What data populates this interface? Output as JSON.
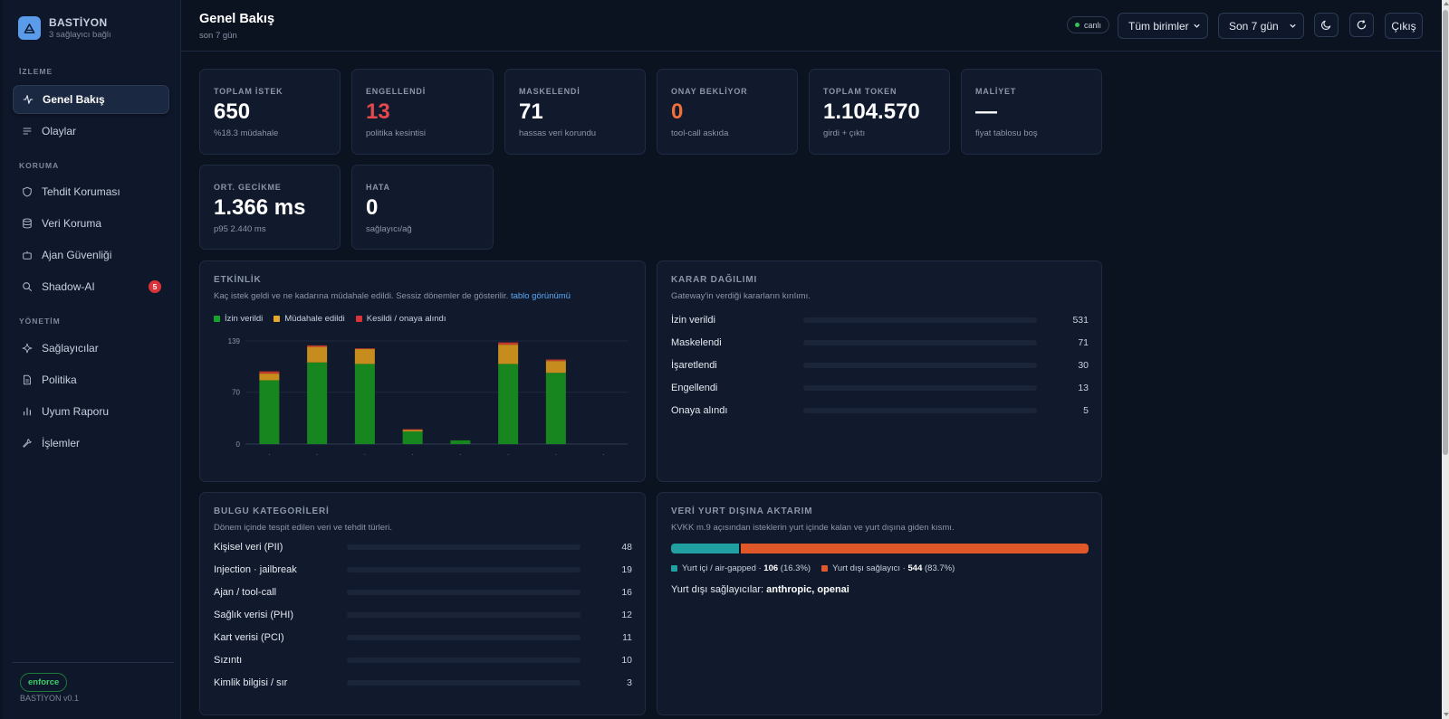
{
  "brand": {
    "name": "BASTİYON",
    "subtitle": "3 sağlayıcı bağlı"
  },
  "sidebar": {
    "sections": [
      "İZLEME",
      "KORUMA",
      "YÖNETİM"
    ],
    "items": [
      {
        "label": "Genel Bakış",
        "icon": "activity-icon",
        "active": true
      },
      {
        "label": "Olaylar",
        "icon": "list-icon"
      },
      {
        "label": "Tehdit Koruması",
        "icon": "shield-icon"
      },
      {
        "label": "Veri Koruma",
        "icon": "database-icon"
      },
      {
        "label": "Ajan Güvenliği",
        "icon": "bot-icon"
      },
      {
        "label": "Shadow-AI",
        "icon": "search-icon",
        "badge": "5"
      },
      {
        "label": "Sağlayıcılar",
        "icon": "sparkle-icon"
      },
      {
        "label": "Politika",
        "icon": "document-icon"
      },
      {
        "label": "Uyum Raporu",
        "icon": "bar-chart-icon"
      },
      {
        "label": "İşlemler",
        "icon": "wrench-icon"
      }
    ],
    "mode": "enforce",
    "version": "BASTİYON v0.1"
  },
  "header": {
    "title": "Genel Bakış",
    "subtitle": "son 7 gün",
    "live": "canlı",
    "unit_select": "Tüm birimler",
    "range_select": "Son 7 gün",
    "logout": "Çıkış"
  },
  "stats": [
    {
      "label": "TOPLAM İSTEK",
      "value": "650",
      "sub": "%18.3 müdahale"
    },
    {
      "label": "ENGELLENDİ",
      "value": "13",
      "sub": "politika kesintisi",
      "color": "#e5484d"
    },
    {
      "label": "MASKELENDİ",
      "value": "71",
      "sub": "hassas veri korundu"
    },
    {
      "label": "ONAY BEKLİYOR",
      "value": "0",
      "sub": "tool-call askıda",
      "color": "#f0703a"
    },
    {
      "label": "TOPLAM TOKEN",
      "value": "1.104.570",
      "sub": "girdi + çıktı"
    },
    {
      "label": "MALİYET",
      "value": "—",
      "sub": "fiyat tablosu boş"
    },
    {
      "label": "ORT. GECİKME",
      "value": "1.366 ms",
      "sub": "p95 2.440 ms"
    },
    {
      "label": "HATA",
      "value": "0",
      "sub": "sağlayıcı/ağ"
    }
  ],
  "activity": {
    "title": "ETKİNLİK",
    "subtitle": "Kaç istek geldi ve ne kadarına müdahale edildi. Sessiz dönemler de gösterilir.",
    "table_link": "tablo görünümü",
    "legend": [
      "İzin verildi",
      "Müdahale edildi",
      "Kesildi / onaya alındı"
    ]
  },
  "chart_data": {
    "type": "bar",
    "stacked": true,
    "categories": [
      "",
      "",
      "",
      "",
      "",
      "",
      "",
      ""
    ],
    "series": [
      {
        "name": "İzin verildi",
        "color": "#17861f",
        "values": [
          86,
          110,
          108,
          17,
          5,
          108,
          96,
          0
        ]
      },
      {
        "name": "Müdahale edildi",
        "color": "#c68c1d",
        "values": [
          9,
          21,
          20,
          2,
          0,
          26,
          16,
          0
        ]
      },
      {
        "name": "Kesildi / onaya alındı",
        "color": "#c0392b",
        "values": [
          3,
          2,
          1,
          1,
          0,
          3,
          2,
          0
        ]
      }
    ],
    "yticks": [
      "0",
      "70",
      "139"
    ],
    "ylim": [
      0,
      139
    ],
    "grid": true
  },
  "decisions": {
    "title": "KARAR DAĞILIMI",
    "subtitle": "Gateway'in verdiği kararların kırılımı.",
    "rows": [
      {
        "label": "İzin verildi",
        "value": "531",
        "n": 531
      },
      {
        "label": "Maskelendi",
        "value": "71",
        "n": 71
      },
      {
        "label": "İşaretlendi",
        "value": "30",
        "n": 30
      },
      {
        "label": "Engellendi",
        "value": "13",
        "n": 13
      },
      {
        "label": "Onaya alındı",
        "value": "5",
        "n": 5
      }
    ]
  },
  "findings": {
    "title": "BULGU KATEGORİLERİ",
    "subtitle": "Dönem içinde tespit edilen veri ve tehdit türleri.",
    "rows": [
      {
        "label": "Kişisel veri (PII)",
        "value": "48",
        "n": 48
      },
      {
        "label": "Injection · jailbreak",
        "value": "19",
        "n": 19
      },
      {
        "label": "Ajan / tool-call",
        "value": "16",
        "n": 16
      },
      {
        "label": "Sağlık verisi (PHI)",
        "value": "12",
        "n": 12
      },
      {
        "label": "Kart verisi (PCI)",
        "value": "11",
        "n": 11
      },
      {
        "label": "Sızıntı",
        "value": "10",
        "n": 10
      },
      {
        "label": "Kimlik bilgisi / sır",
        "value": "3",
        "n": 3
      }
    ]
  },
  "transfer": {
    "title": "VERİ YURT DIŞINA AKTARIM",
    "subtitle": "KVKK m.9 açısından isteklerin yurt içinde kalan ve yurt dışına giden kısmı.",
    "domestic_label": "Yurt içi / air-gapped ·",
    "domestic_count": "106",
    "domestic_pct": "(16.3%)",
    "domestic_share": 0.163,
    "domestic_color": "#20a0a0",
    "foreign_label": "Yurt dışı sağlayıcı ·",
    "foreign_count": "544",
    "foreign_pct": "(83.7%)",
    "foreign_share": 0.837,
    "foreign_color": "#e0582a",
    "providers_label": "Yurt dışı sağlayıcılar:",
    "providers": "anthropic, openai"
  }
}
